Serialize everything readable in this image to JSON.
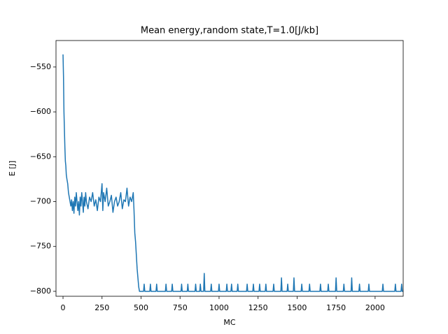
{
  "chart_data": {
    "type": "line",
    "title": "Mean energy,random state,T=1.0[J/kb]",
    "x_label": "MC",
    "y_label": "E [J]",
    "color": "#1f77b4",
    "xlim": [
      -45,
      2180
    ],
    "ylim": [
      -805.5,
      -520.5
    ],
    "xticks": [
      0,
      250,
      500,
      750,
      1000,
      1250,
      1500,
      1750,
      2000
    ],
    "yticks": [
      {
        "value": -800,
        "label": "−800"
      },
      {
        "value": -750,
        "label": "−750"
      },
      {
        "value": -700,
        "label": "−700"
      },
      {
        "value": -650,
        "label": "−650"
      },
      {
        "value": -600,
        "label": "−600"
      },
      {
        "value": -550,
        "label": "−550"
      }
    ],
    "x": [
      0,
      3,
      6,
      9,
      12,
      15,
      18,
      21,
      25,
      30,
      35,
      40,
      45,
      50,
      55,
      60,
      65,
      70,
      75,
      80,
      85,
      90,
      95,
      100,
      105,
      110,
      115,
      120,
      125,
      130,
      135,
      140,
      145,
      150,
      160,
      170,
      180,
      190,
      200,
      210,
      220,
      230,
      240,
      250,
      255,
      260,
      270,
      280,
      290,
      300,
      310,
      320,
      330,
      340,
      350,
      360,
      370,
      380,
      390,
      400,
      410,
      420,
      430,
      440,
      450,
      455,
      460,
      465,
      470,
      475,
      480,
      485,
      490,
      500,
      516,
      520,
      524,
      556,
      560,
      564,
      596,
      600,
      604,
      656,
      660,
      664,
      696,
      700,
      704,
      756,
      760,
      764,
      796,
      800,
      804,
      846,
      850,
      854,
      876,
      880,
      884,
      901,
      905,
      909,
      946,
      950,
      954,
      996,
      1000,
      1004,
      1046,
      1050,
      1054,
      1076,
      1080,
      1084,
      1116,
      1120,
      1124,
      1176,
      1180,
      1184,
      1216,
      1220,
      1224,
      1256,
      1260,
      1264,
      1296,
      1300,
      1304,
      1346,
      1350,
      1354,
      1396,
      1400,
      1404,
      1436,
      1440,
      1444,
      1476,
      1480,
      1484,
      1526,
      1530,
      1534,
      1576,
      1580,
      1584,
      1646,
      1650,
      1654,
      1696,
      1700,
      1704,
      1746,
      1750,
      1754,
      1796,
      1800,
      1804,
      1846,
      1850,
      1854,
      1896,
      1900,
      1904,
      1956,
      1960,
      1964,
      2046,
      2050,
      2054,
      2126,
      2130,
      2134,
      2166,
      2170,
      2174,
      2179
    ],
    "values": [
      -536,
      -560,
      -600,
      -620,
      -640,
      -655,
      -660,
      -670,
      -675,
      -680,
      -690,
      -695,
      -700,
      -705,
      -698,
      -710,
      -700,
      -713,
      -695,
      -705,
      -690,
      -700,
      -710,
      -700,
      -715,
      -695,
      -705,
      -690,
      -700,
      -712,
      -695,
      -705,
      -690,
      -700,
      -708,
      -695,
      -700,
      -690,
      -705,
      -698,
      -710,
      -695,
      -700,
      -680,
      -710,
      -690,
      -700,
      -685,
      -705,
      -700,
      -693,
      -712,
      -700,
      -695,
      -705,
      -700,
      -690,
      -708,
      -698,
      -700,
      -685,
      -705,
      -695,
      -700,
      -690,
      -710,
      -735,
      -745,
      -760,
      -775,
      -785,
      -795,
      -800,
      -800,
      -800,
      -792,
      -800,
      -800,
      -792,
      -800,
      -800,
      -792,
      -800,
      -800,
      -792,
      -800,
      -800,
      -792,
      -800,
      -800,
      -792,
      -800,
      -800,
      -792,
      -800,
      -800,
      -792,
      -800,
      -800,
      -792,
      -800,
      -800,
      -780,
      -800,
      -800,
      -792,
      -800,
      -800,
      -792,
      -800,
      -800,
      -792,
      -800,
      -800,
      -792,
      -800,
      -800,
      -792,
      -800,
      -800,
      -792,
      -800,
      -800,
      -792,
      -800,
      -800,
      -792,
      -800,
      -800,
      -792,
      -800,
      -800,
      -792,
      -800,
      -800,
      -785,
      -800,
      -800,
      -792,
      -800,
      -800,
      -785,
      -800,
      -800,
      -792,
      -800,
      -800,
      -792,
      -800,
      -800,
      -792,
      -800,
      -800,
      -792,
      -800,
      -800,
      -785,
      -800,
      -800,
      -792,
      -800,
      -800,
      -785,
      -800,
      -800,
      -792,
      -800,
      -800,
      -792,
      -800,
      -800,
      -792,
      -800,
      -800,
      -792,
      -800,
      -800,
      -792,
      -800,
      -800
    ]
  }
}
